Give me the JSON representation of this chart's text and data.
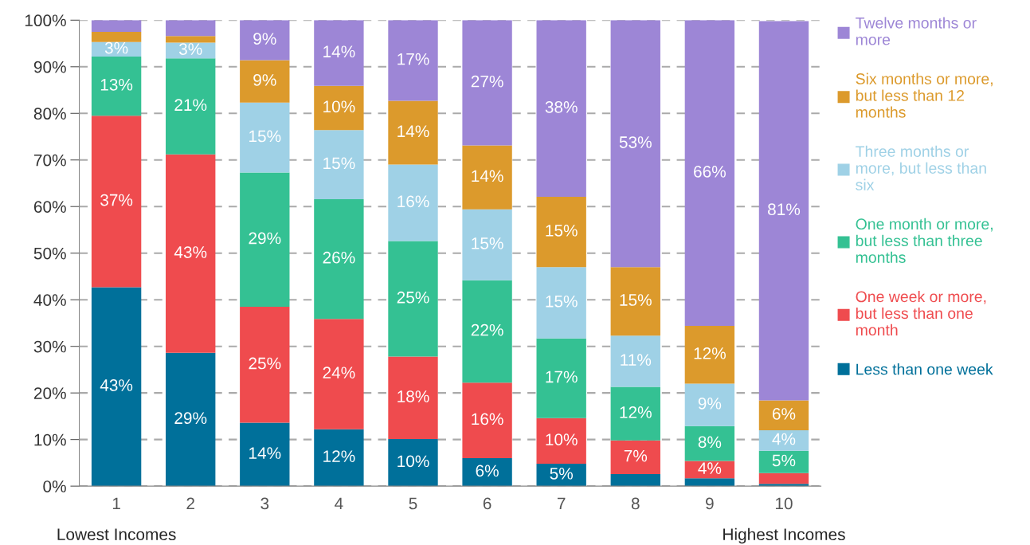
{
  "chart_data": {
    "type": "bar",
    "stacked": true,
    "categories": [
      "1",
      "2",
      "3",
      "4",
      "5",
      "6",
      "7",
      "8",
      "9",
      "10"
    ],
    "series": [
      {
        "name": "Less than one week",
        "color": "#00709a",
        "values": [
          42.7,
          28.6,
          13.6,
          12.2,
          10.1,
          6.0,
          4.8,
          2.6,
          1.7,
          0.5
        ],
        "value_labels": [
          "43%",
          "29%",
          "14%",
          "12%",
          "10%",
          "6%",
          "5%",
          null,
          null,
          null
        ]
      },
      {
        "name": "One week or more, but less than one month",
        "color": "#ef4b4e",
        "values": [
          36.8,
          42.6,
          24.9,
          23.7,
          17.7,
          16.2,
          9.8,
          7.2,
          3.7,
          2.3
        ],
        "value_labels": [
          "37%",
          "43%",
          "25%",
          "24%",
          "18%",
          "16%",
          "10%",
          "7%",
          "4%",
          null
        ]
      },
      {
        "name": "One month or more, but less than three months",
        "color": "#34c193",
        "values": [
          12.7,
          20.6,
          28.8,
          25.7,
          24.8,
          22.0,
          17.1,
          11.5,
          7.5,
          4.8
        ],
        "value_labels": [
          "13%",
          "21%",
          "29%",
          "26%",
          "25%",
          "22%",
          "17%",
          "12%",
          "8%",
          "5%"
        ]
      },
      {
        "name": "Three months or more, but less than six",
        "color": "#9fd1e6",
        "values": [
          3.1,
          3.4,
          15.0,
          14.8,
          16.4,
          15.2,
          15.3,
          11.0,
          9.1,
          4.4
        ],
        "value_labels": [
          "3%",
          "3%",
          "15%",
          "15%",
          "16%",
          "15%",
          "15%",
          "11%",
          "9%",
          "4%"
        ]
      },
      {
        "name": "Six months or more, but less than 12 months",
        "color": "#dc9a2c",
        "values": [
          2.2,
          1.4,
          9.1,
          9.5,
          13.7,
          13.7,
          15.1,
          14.7,
          12.4,
          6.4
        ],
        "value_labels": [
          null,
          null,
          "9%",
          "10%",
          "14%",
          "14%",
          "15%",
          "15%",
          "12%",
          "6%"
        ]
      },
      {
        "name": "Twelve months or more",
        "color": "#9d86d6",
        "values": [
          2.5,
          3.4,
          8.6,
          14.1,
          17.3,
          26.9,
          37.9,
          53.0,
          65.6,
          81.4
        ],
        "value_labels": [
          null,
          null,
          "9%",
          "14%",
          "17%",
          "27%",
          "38%",
          "53%",
          "66%",
          "81%"
        ]
      }
    ],
    "ylim": [
      0,
      100
    ],
    "yticks": [
      {
        "value": 0,
        "label": "0%"
      },
      {
        "value": 10,
        "label": "10%"
      },
      {
        "value": 20,
        "label": "20%"
      },
      {
        "value": 30,
        "label": "30%"
      },
      {
        "value": 40,
        "label": "40%"
      },
      {
        "value": 50,
        "label": "50%"
      },
      {
        "value": 60,
        "label": "60%"
      },
      {
        "value": 70,
        "label": "70%"
      },
      {
        "value": 80,
        "label": "80%"
      },
      {
        "value": 90,
        "label": "90%"
      },
      {
        "value": 100,
        "label": "100%"
      }
    ],
    "grid": "y",
    "legend": "top right",
    "annotations": [
      "Lowest Incomes",
      "Highest Incomes"
    ]
  }
}
